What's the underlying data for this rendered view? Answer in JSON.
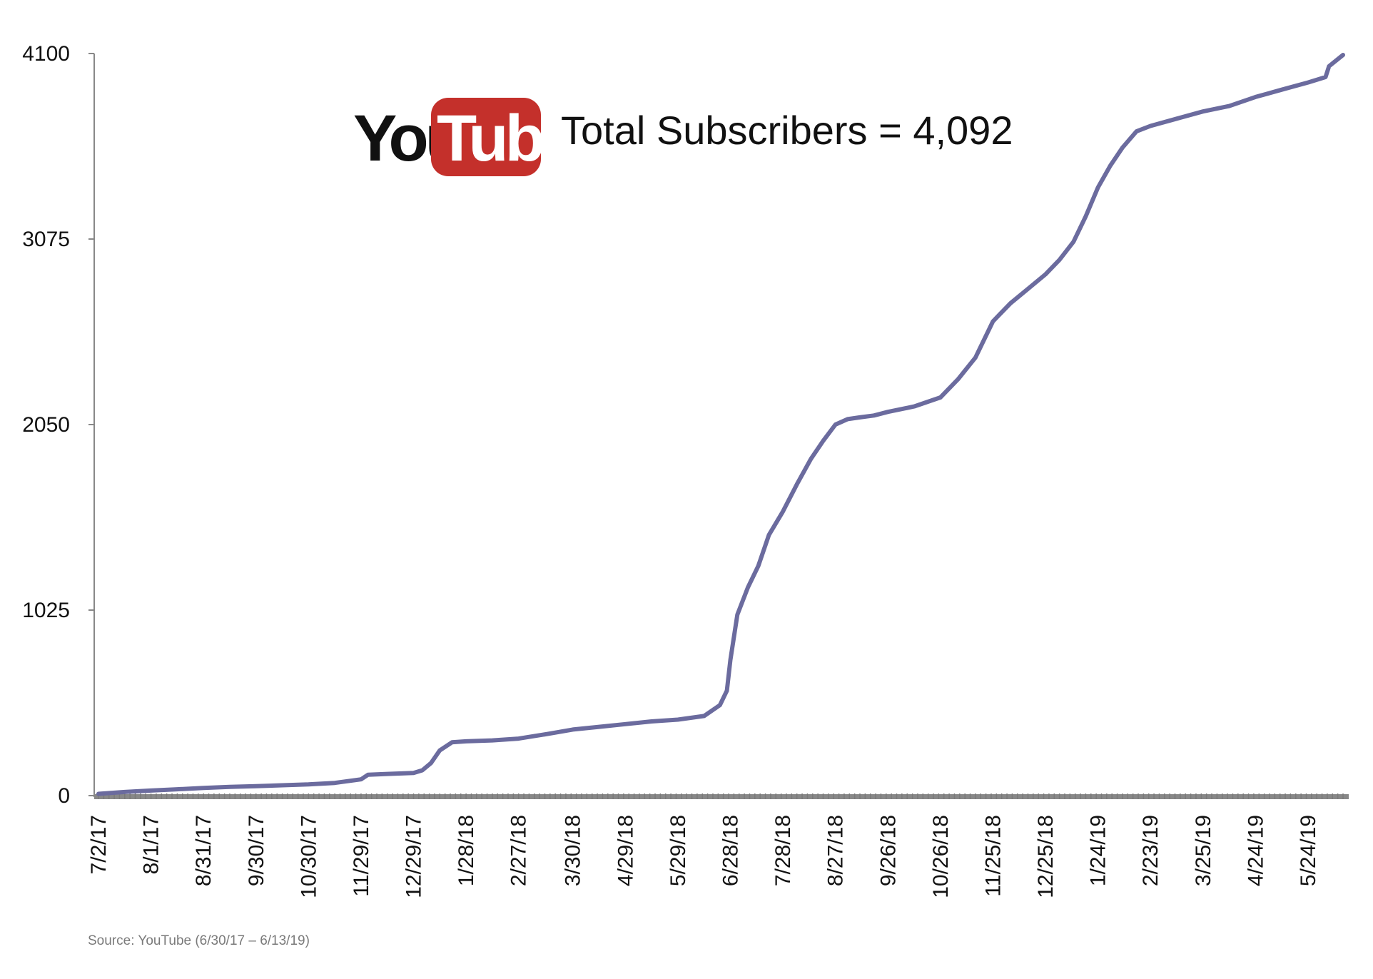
{
  "headline": {
    "logo_you": "You",
    "logo_tube": "Tube",
    "text": "Total Subscribers = 4,092"
  },
  "source": "Source: YouTube (6/30/17 – 6/13/19)",
  "colors": {
    "line": "#6b6b9e",
    "logo_red": "#c4302b",
    "axis": "#888888"
  },
  "chart_data": {
    "type": "line",
    "title": "",
    "xlabel": "",
    "ylabel": "",
    "x_start": "7/2/17",
    "x_end": "6/13/19",
    "ylim": [
      0,
      4100
    ],
    "y_ticks": [
      0,
      1025,
      2050,
      3075,
      4100
    ],
    "y_tick_labels": [
      "0",
      "1025",
      "2050",
      "3075",
      "4100"
    ],
    "x_tick_labels": [
      "7/2/17",
      "8/1/17",
      "8/31/17",
      "9/30/17",
      "10/30/17",
      "11/29/17",
      "12/29/17",
      "1/28/18",
      "2/27/18",
      "3/30/18",
      "4/29/18",
      "5/29/18",
      "6/28/18",
      "7/28/18",
      "8/27/18",
      "9/26/18",
      "10/26/18",
      "11/25/18",
      "12/25/18",
      "1/24/19",
      "2/23/19",
      "3/25/19",
      "4/24/19",
      "5/24/19"
    ],
    "grid": false,
    "legend": "none",
    "series": [
      {
        "x": [
          "7/2/17",
          "7/17/17",
          "8/1/17",
          "8/16/17",
          "8/31/17",
          "9/15/17",
          "9/30/17",
          "10/15/17",
          "10/30/17",
          "11/14/17",
          "11/29/17",
          "12/3/17",
          "12/14/17",
          "12/29/17",
          "1/3/18",
          "1/8/18",
          "1/13/18",
          "1/20/18",
          "1/28/18",
          "2/12/18",
          "2/27/18",
          "3/15/18",
          "3/30/18",
          "4/14/18",
          "4/29/18",
          "5/14/18",
          "5/29/18",
          "6/13/18",
          "6/22/18",
          "6/26/18",
          "6/28/18",
          "7/2/18",
          "7/8/18",
          "7/14/18",
          "7/20/18",
          "7/28/18",
          "8/5/18",
          "8/13/18",
          "8/20/18",
          "8/27/18",
          "9/3/18",
          "9/10/18",
          "9/18/18",
          "9/26/18",
          "10/11/18",
          "10/26/18",
          "11/5/18",
          "11/15/18",
          "11/25/18",
          "12/5/18",
          "12/15/18",
          "12/25/18",
          "1/2/19",
          "1/10/19",
          "1/17/19",
          "1/24/19",
          "1/31/19",
          "2/7/19",
          "2/15/19",
          "2/23/19",
          "3/10/19",
          "3/25/19",
          "4/9/19",
          "4/24/19",
          "5/9/19",
          "5/24/19",
          "6/3/19",
          "6/5/19",
          "6/13/19"
        ],
        "y": [
          10,
          20,
          28,
          35,
          42,
          48,
          52,
          57,
          62,
          70,
          90,
          115,
          120,
          125,
          140,
          180,
          250,
          295,
          300,
          305,
          315,
          340,
          365,
          380,
          395,
          410,
          420,
          440,
          500,
          580,
          750,
          1000,
          1150,
          1270,
          1440,
          1570,
          1720,
          1860,
          1960,
          2050,
          2080,
          2090,
          2100,
          2120,
          2150,
          2200,
          2300,
          2420,
          2620,
          2720,
          2800,
          2880,
          2960,
          3060,
          3200,
          3360,
          3480,
          3580,
          3670,
          3700,
          3740,
          3780,
          3810,
          3860,
          3900,
          3940,
          3970,
          4030,
          4092
        ]
      }
    ]
  }
}
